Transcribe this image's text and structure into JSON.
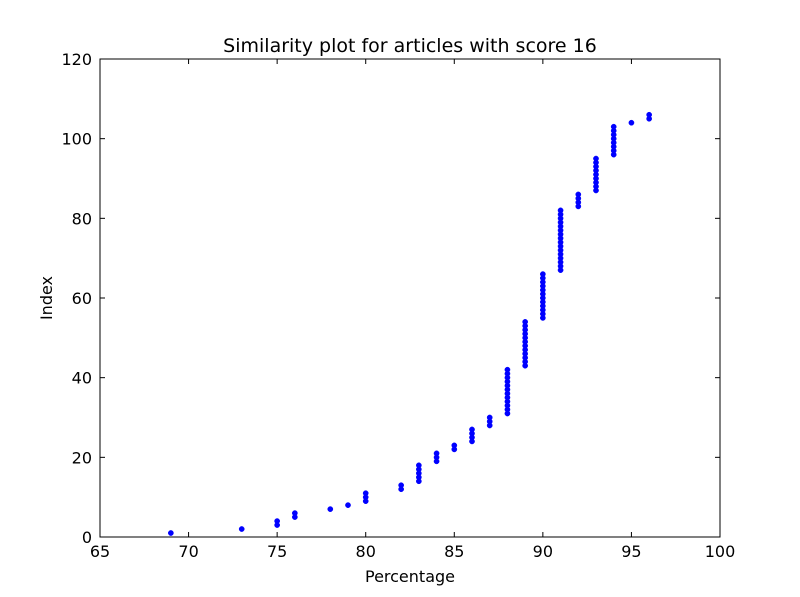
{
  "chart_data": {
    "type": "scatter",
    "title": "Similarity plot for articles with score 16",
    "xlabel": "Percentage",
    "ylabel": "Index",
    "xlim": [
      65,
      100
    ],
    "ylim": [
      0,
      120
    ],
    "xticks": [
      65,
      70,
      75,
      80,
      85,
      90,
      95,
      100
    ],
    "yticks": [
      0,
      20,
      40,
      60,
      80,
      100,
      120
    ],
    "grid": false,
    "marker_color": "#0000ff",
    "points": {
      "x": [
        69,
        73,
        75,
        75,
        76,
        76,
        78,
        79,
        80,
        80,
        80,
        82,
        82,
        83,
        83,
        83,
        83,
        83,
        84,
        84,
        84,
        85,
        85,
        86,
        86,
        86,
        86,
        87,
        87,
        87,
        88,
        88,
        88,
        88,
        88,
        88,
        88,
        88,
        88,
        88,
        88,
        88,
        89,
        89,
        89,
        89,
        89,
        89,
        89,
        89,
        89,
        89,
        89,
        89,
        90,
        90,
        90,
        90,
        90,
        90,
        90,
        90,
        90,
        90,
        90,
        90,
        91,
        91,
        91,
        91,
        91,
        91,
        91,
        91,
        91,
        91,
        91,
        91,
        91,
        91,
        91,
        91,
        92,
        92,
        92,
        92,
        93,
        93,
        93,
        93,
        93,
        93,
        93,
        93,
        93,
        94,
        94,
        94,
        94,
        94,
        94,
        94,
        94,
        95,
        96,
        96
      ],
      "y": [
        1,
        2,
        3,
        4,
        5,
        6,
        7,
        8,
        9,
        10,
        11,
        12,
        13,
        14,
        15,
        16,
        17,
        18,
        19,
        20,
        21,
        22,
        23,
        24,
        25,
        26,
        27,
        28,
        29,
        30,
        31,
        32,
        33,
        34,
        35,
        36,
        37,
        38,
        39,
        40,
        41,
        42,
        43,
        44,
        45,
        46,
        47,
        48,
        49,
        50,
        51,
        52,
        53,
        54,
        55,
        56,
        57,
        58,
        59,
        60,
        61,
        62,
        63,
        64,
        65,
        66,
        67,
        68,
        69,
        70,
        71,
        72,
        73,
        74,
        75,
        76,
        77,
        78,
        79,
        80,
        81,
        82,
        83,
        84,
        85,
        86,
        87,
        88,
        89,
        90,
        91,
        92,
        93,
        94,
        95,
        96,
        97,
        98,
        99,
        100,
        101,
        102,
        103,
        104,
        105,
        106
      ]
    }
  }
}
